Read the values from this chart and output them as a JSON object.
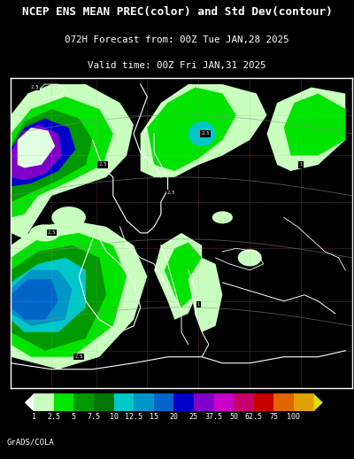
{
  "title_line1": "NCEP ENS MEAN PREC(color) and Std Dev(contour)",
  "title_line2": "072H Forecast from: 00Z Tue JAN,28 2025",
  "title_line3": "Valid time: 00Z Fri JAN,31 2025",
  "background_color": "#000000",
  "title_color": "#ffffff",
  "footer_text": "GrADS/COLA",
  "footer_color": "#ffffff",
  "colorbar_box_colors": [
    "#c8ffbe",
    "#00e400",
    "#009900",
    "#007700",
    "#00c8c8",
    "#0096c8",
    "#0064c8",
    "#0000c8",
    "#8000c8",
    "#c800c8",
    "#c8006e",
    "#c80000",
    "#e06400",
    "#e0a000"
  ],
  "colorbar_arrow_left_color": "#ffffff",
  "colorbar_arrow_right_color": "#e0e000",
  "colorbar_labels": [
    "1",
    "2.5",
    "5",
    "7.5",
    "10",
    "12.5",
    "15",
    "20",
    "25",
    "37.5",
    "50",
    "62.5",
    "75",
    "100"
  ],
  "map_border_color": "#ffffff",
  "contour_label_color": "#ffffff",
  "contour_label_bg": "#000000",
  "map_frame": [
    0.03,
    0.155,
    0.965,
    0.675
  ],
  "title_fontsize": 9.2,
  "subtitle_fontsize": 7.8,
  "colorbar_fontsize": 6.0,
  "footer_fontsize": 6.5,
  "grid_dotted_color": "#cc88aa",
  "grid_solid_color": "#888888",
  "coastline_color": "#ffffff",
  "country_border_color": "#aaaaaa",
  "precip_colors": {
    "vlgreen": "#c8ffbe",
    "lgreen": "#00e400",
    "mgreen": "#009900",
    "dgreen": "#007700",
    "teal": "#00c8c8",
    "ltblue": "#0096c8",
    "blue": "#0064c8",
    "dblue": "#0000c8",
    "purple": "#8000c8",
    "mpurple": "#c800c8",
    "pink": "#c8006e",
    "red": "#c80000",
    "orange": "#e06400",
    "yellow": "#e0a000"
  }
}
